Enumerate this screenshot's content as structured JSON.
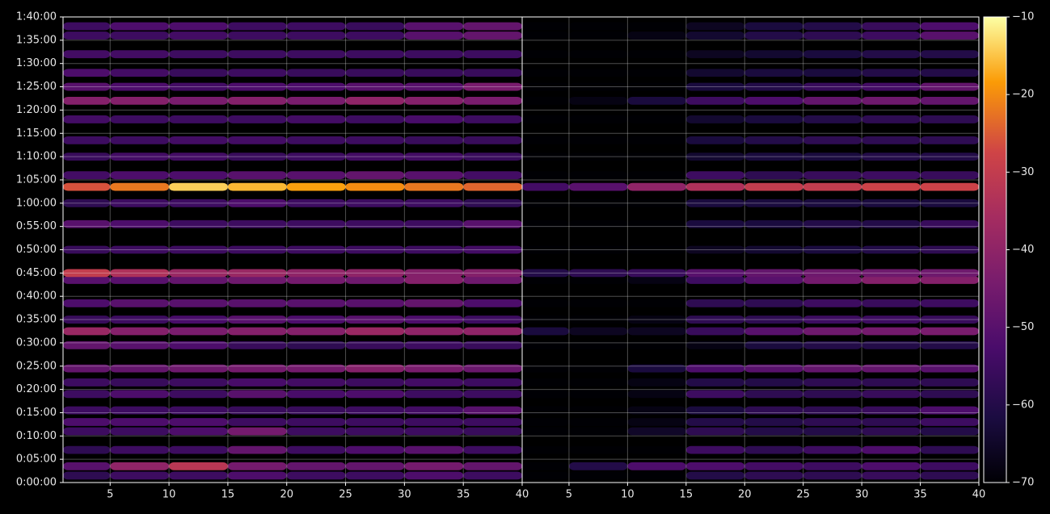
{
  "chart_data": {
    "type": "heatmap",
    "colormap": "inferno",
    "grid": true,
    "ylim": [
      0,
      100
    ],
    "yticks": [
      {
        "value": 0,
        "label": "0:00:00"
      },
      {
        "value": 5,
        "label": "0:05:00"
      },
      {
        "value": 10,
        "label": "0:10:00"
      },
      {
        "value": 15,
        "label": "0:15:00"
      },
      {
        "value": 20,
        "label": "0:20:00"
      },
      {
        "value": 25,
        "label": "0:25:00"
      },
      {
        "value": 30,
        "label": "0:30:00"
      },
      {
        "value": 35,
        "label": "0:35:00"
      },
      {
        "value": 40,
        "label": "0:40:00"
      },
      {
        "value": 45,
        "label": "0:45:00"
      },
      {
        "value": 50,
        "label": "0:50:00"
      },
      {
        "value": 55,
        "label": "0:55:00"
      },
      {
        "value": 60,
        "label": "1:00:00"
      },
      {
        "value": 65,
        "label": "1:05:00"
      },
      {
        "value": 70,
        "label": "1:10:00"
      },
      {
        "value": 75,
        "label": "1:15:00"
      },
      {
        "value": 80,
        "label": "1:20:00"
      },
      {
        "value": 85,
        "label": "1:25:00"
      },
      {
        "value": 90,
        "label": "1:30:00"
      },
      {
        "value": 95,
        "label": "1:35:00"
      },
      {
        "value": 100,
        "label": "1:40:00"
      }
    ],
    "clim": [
      -70,
      -10
    ],
    "cticks": [
      {
        "value": -70,
        "label": "−70"
      },
      {
        "value": -60,
        "label": "−60"
      },
      {
        "value": -50,
        "label": "−50"
      },
      {
        "value": -40,
        "label": "−40"
      },
      {
        "value": -30,
        "label": "−30"
      },
      {
        "value": -20,
        "label": "−20"
      },
      {
        "value": -10,
        "label": "−10"
      }
    ],
    "x": [
      1,
      5,
      10,
      15,
      20,
      25,
      30,
      35,
      40
    ],
    "y": [
      1.5,
      3.5,
      7,
      11,
      13,
      15.5,
      19,
      21.5,
      24.5,
      29.5,
      32.5,
      35,
      38.5,
      43.5,
      45,
      50,
      55.5,
      60,
      63.5,
      66,
      70,
      73.5,
      78,
      82,
      85,
      88,
      92,
      96,
      98
    ],
    "panels": [
      {
        "xlim": [
          1,
          40
        ],
        "xticks": [
          5,
          10,
          15,
          20,
          25,
          30,
          35,
          40
        ],
        "z": [
          [
            -58,
            -55,
            -55,
            -52,
            -55,
            -55,
            -52,
            -55
          ],
          [
            -50,
            -40,
            -32,
            -45,
            -48,
            -48,
            -45,
            -48
          ],
          [
            -58,
            -55,
            -55,
            -48,
            -55,
            -52,
            -50,
            -55
          ],
          [
            -55,
            -55,
            -52,
            -45,
            -55,
            -55,
            -55,
            -56
          ],
          [
            -52,
            -52,
            -52,
            -55,
            -55,
            -55,
            -55,
            -55
          ],
          [
            -55,
            -55,
            -55,
            -56,
            -56,
            -55,
            -54,
            -50
          ],
          [
            -55,
            -52,
            -55,
            -50,
            -53,
            -52,
            -55,
            -55
          ],
          [
            -55,
            -56,
            -55,
            -53,
            -54,
            -55,
            -54,
            -55
          ],
          [
            -48,
            -48,
            -46,
            -45,
            -45,
            -42,
            -44,
            -47
          ],
          [
            -48,
            -50,
            -52,
            -56,
            -58,
            -56,
            -55,
            -56
          ],
          [
            -38,
            -42,
            -44,
            -42,
            -42,
            -38,
            -40,
            -40
          ],
          [
            -56,
            -55,
            -53,
            -50,
            -52,
            -50,
            -52,
            -55
          ],
          [
            -52,
            -50,
            -50,
            -50,
            -50,
            -50,
            -48,
            -52
          ],
          [
            -50,
            -50,
            -48,
            -46,
            -45,
            -46,
            -42,
            -46
          ],
          [
            -30,
            -34,
            -38,
            -38,
            -40,
            -40,
            -42,
            -42
          ],
          [
            -56,
            -55,
            -55,
            -55,
            -55,
            -55,
            -55,
            -54
          ],
          [
            -50,
            -52,
            -55,
            -55,
            -55,
            -55,
            -55,
            -50
          ],
          [
            -58,
            -55,
            -55,
            -52,
            -55,
            -55,
            -55,
            -58
          ],
          [
            -26,
            -22,
            -14,
            -16,
            -18,
            -20,
            -22,
            -24
          ],
          [
            -54,
            -52,
            -52,
            -50,
            -50,
            -48,
            -50,
            -54
          ],
          [
            -56,
            -54,
            -54,
            -56,
            -55,
            -54,
            -54,
            -56
          ],
          [
            -55,
            -55,
            -54,
            -54,
            -55,
            -55,
            -56,
            -56
          ],
          [
            -54,
            -55,
            -55,
            -55,
            -54,
            -55,
            -53,
            -55
          ],
          [
            -42,
            -42,
            -44,
            -42,
            -44,
            -40,
            -42,
            -44
          ],
          [
            -50,
            -52,
            -54,
            -52,
            -52,
            -50,
            -50,
            -44
          ],
          [
            -52,
            -54,
            -56,
            -55,
            -56,
            -56,
            -56,
            -56
          ],
          [
            -54,
            -54,
            -55,
            -55,
            -55,
            -55,
            -55,
            -55
          ],
          [
            -55,
            -55,
            -54,
            -55,
            -55,
            -55,
            -50,
            -48
          ],
          [
            -55,
            -52,
            -52,
            -55,
            -55,
            -56,
            -50,
            -48
          ]
        ]
      },
      {
        "xlim": [
          1,
          40
        ],
        "xticks": [
          5,
          10,
          15,
          20,
          25,
          30,
          35,
          40
        ],
        "z": [
          [
            -70,
            -70,
            -70,
            -60,
            -58,
            -58,
            -56,
            -58
          ],
          [
            -70,
            -60,
            -52,
            -52,
            -54,
            -55,
            -52,
            -55
          ],
          [
            -70,
            -70,
            -70,
            -55,
            -58,
            -55,
            -52,
            -58
          ],
          [
            -70,
            -70,
            -65,
            -58,
            -60,
            -60,
            -58,
            -60
          ],
          [
            -70,
            -70,
            -68,
            -60,
            -60,
            -58,
            -58,
            -55
          ],
          [
            -70,
            -70,
            -68,
            -62,
            -58,
            -58,
            -56,
            -52
          ],
          [
            -70,
            -70,
            -68,
            -55,
            -58,
            -58,
            -56,
            -58
          ],
          [
            -70,
            -70,
            -68,
            -60,
            -60,
            -58,
            -58,
            -58
          ],
          [
            -70,
            -70,
            -62,
            -52,
            -50,
            -48,
            -48,
            -50
          ],
          [
            -70,
            -70,
            -70,
            -68,
            -62,
            -60,
            -60,
            -60
          ],
          [
            -62,
            -66,
            -66,
            -56,
            -50,
            -46,
            -45,
            -44
          ],
          [
            -70,
            -70,
            -68,
            -58,
            -58,
            -55,
            -55,
            -56
          ],
          [
            -70,
            -70,
            -70,
            -58,
            -58,
            -55,
            -56,
            -55
          ],
          [
            -70,
            -70,
            -68,
            -55,
            -50,
            -45,
            -42,
            -42
          ],
          [
            -60,
            -58,
            -56,
            -50,
            -48,
            -46,
            -46,
            -46
          ],
          [
            -70,
            -70,
            -70,
            -66,
            -64,
            -62,
            -60,
            -58
          ],
          [
            -70,
            -70,
            -70,
            -62,
            -62,
            -60,
            -60,
            -56
          ],
          [
            -70,
            -70,
            -70,
            -62,
            -62,
            -62,
            -62,
            -62
          ],
          [
            -54,
            -50,
            -40,
            -34,
            -30,
            -30,
            -28,
            -28
          ],
          [
            -70,
            -70,
            -70,
            -55,
            -58,
            -56,
            -55,
            -56
          ],
          [
            -70,
            -70,
            -70,
            -64,
            -62,
            -62,
            -60,
            -60
          ],
          [
            -70,
            -70,
            -70,
            -62,
            -60,
            -58,
            -58,
            -58
          ],
          [
            -70,
            -70,
            -70,
            -64,
            -62,
            -60,
            -58,
            -58
          ],
          [
            -70,
            -68,
            -62,
            -55,
            -52,
            -48,
            -46,
            -48
          ],
          [
            -70,
            -70,
            -70,
            -62,
            -60,
            -56,
            -54,
            -48
          ],
          [
            -70,
            -70,
            -70,
            -64,
            -62,
            -62,
            -60,
            -60
          ],
          [
            -70,
            -70,
            -70,
            -66,
            -64,
            -62,
            -60,
            -60
          ],
          [
            -70,
            -70,
            -68,
            -64,
            -60,
            -58,
            -55,
            -50
          ],
          [
            -70,
            -70,
            -70,
            -66,
            -62,
            -60,
            -56,
            -52
          ]
        ]
      }
    ]
  }
}
